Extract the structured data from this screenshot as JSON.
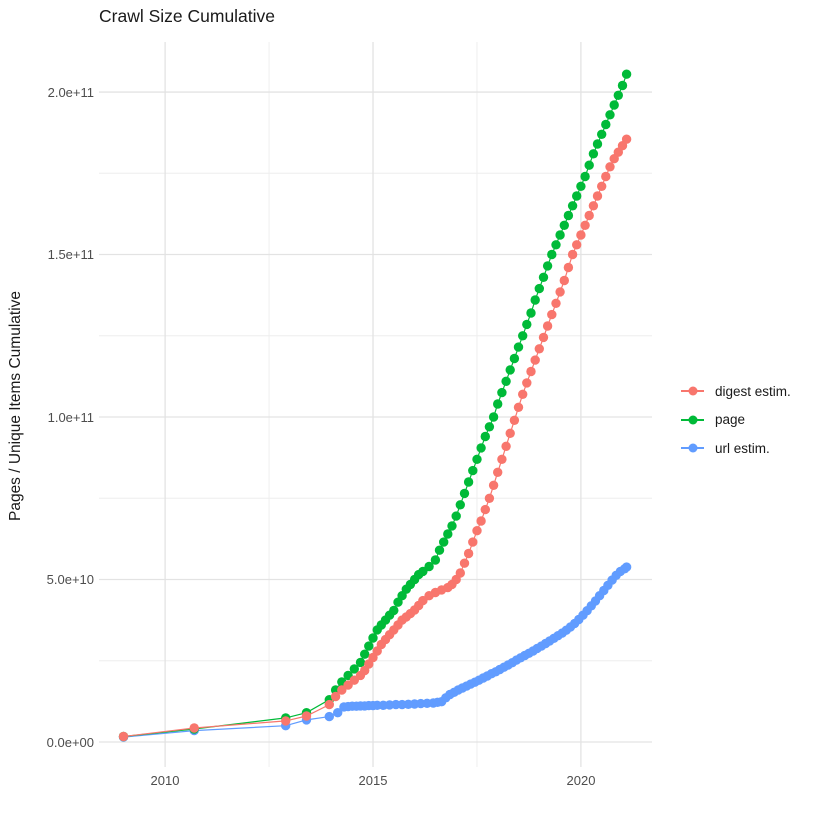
{
  "title": "Crawl Size Cumulative",
  "axes": {
    "y_title": "Pages / Unique Items Cumulative",
    "x_tick_labels": [
      "2010",
      "2015",
      "2020"
    ],
    "y_tick_labels": [
      "0.0e+00",
      "5.0e+10",
      "1.0e+11",
      "1.5e+11",
      "2.0e+11"
    ]
  },
  "legend": {
    "items": [
      {
        "label": "digest estim.",
        "color": "#F8766D"
      },
      {
        "label": "page",
        "color": "#00BA38"
      },
      {
        "label": "url estim.",
        "color": "#619CFF"
      }
    ]
  },
  "chart_data": {
    "type": "line",
    "title": "Crawl Size Cumulative",
    "xlabel": "",
    "ylabel": "Pages / Unique Items Cumulative",
    "legend_position": "right",
    "grid": {
      "major_color": "#E3E3E3",
      "minor_color": "#EEEEEE"
    },
    "value_unit_note": "point values are in billions (1e9) of pages / unique items",
    "xlim": [
      2008.41,
      2021.71
    ],
    "ylim_billions": [
      -7.7,
      215.4
    ],
    "x_major_ticks": [
      2010,
      2015,
      2020
    ],
    "x_minor_ticks": [
      2012.5,
      2017.5
    ],
    "y_major_ticks_billions": [
      0,
      50,
      100,
      150,
      200
    ],
    "y_minor_ticks_billions": [
      25,
      75,
      125,
      175
    ],
    "series": [
      {
        "name": "digest estim.",
        "color": "#F8766D",
        "points_year_billions": [
          [
            2009.0,
            1.7
          ],
          [
            2010.7,
            4.3
          ],
          [
            2012.9,
            6.5
          ],
          [
            2013.4,
            8.0
          ],
          [
            2013.95,
            11.5
          ],
          [
            2014.1,
            14
          ],
          [
            2014.25,
            16
          ],
          [
            2014.4,
            17.5
          ],
          [
            2014.55,
            19
          ],
          [
            2014.7,
            20.5
          ],
          [
            2014.8,
            22
          ],
          [
            2014.9,
            24
          ],
          [
            2015.0,
            26
          ],
          [
            2015.1,
            28
          ],
          [
            2015.2,
            30
          ],
          [
            2015.3,
            31.5
          ],
          [
            2015.4,
            33
          ],
          [
            2015.5,
            34.5
          ],
          [
            2015.6,
            36
          ],
          [
            2015.7,
            37.5
          ],
          [
            2015.8,
            38.5
          ],
          [
            2015.9,
            39.5
          ],
          [
            2016.0,
            40.6
          ],
          [
            2016.1,
            42
          ],
          [
            2016.2,
            43.5
          ],
          [
            2016.35,
            45
          ],
          [
            2016.5,
            46
          ],
          [
            2016.65,
            46.8
          ],
          [
            2016.8,
            47.5
          ],
          [
            2016.9,
            48.5
          ],
          [
            2017.0,
            50
          ],
          [
            2017.1,
            52
          ],
          [
            2017.2,
            55
          ],
          [
            2017.3,
            58
          ],
          [
            2017.4,
            61.5
          ],
          [
            2017.5,
            65
          ],
          [
            2017.6,
            68
          ],
          [
            2017.7,
            71.5
          ],
          [
            2017.8,
            75
          ],
          [
            2017.9,
            79
          ],
          [
            2018.0,
            83
          ],
          [
            2018.1,
            87
          ],
          [
            2018.2,
            91
          ],
          [
            2018.3,
            95
          ],
          [
            2018.4,
            99
          ],
          [
            2018.5,
            103
          ],
          [
            2018.6,
            107
          ],
          [
            2018.7,
            110.5
          ],
          [
            2018.8,
            114
          ],
          [
            2018.9,
            117.5
          ],
          [
            2019.0,
            121
          ],
          [
            2019.1,
            124.5
          ],
          [
            2019.2,
            128
          ],
          [
            2019.3,
            131.5
          ],
          [
            2019.4,
            135
          ],
          [
            2019.5,
            138.5
          ],
          [
            2019.6,
            142
          ],
          [
            2019.7,
            146
          ],
          [
            2019.8,
            150
          ],
          [
            2019.9,
            153
          ],
          [
            2020.0,
            156
          ],
          [
            2020.1,
            159
          ],
          [
            2020.2,
            162
          ],
          [
            2020.3,
            165
          ],
          [
            2020.4,
            168
          ],
          [
            2020.5,
            171
          ],
          [
            2020.6,
            174
          ],
          [
            2020.7,
            177
          ],
          [
            2020.8,
            179.5
          ],
          [
            2020.9,
            181.5
          ],
          [
            2021.0,
            183.5
          ],
          [
            2021.1,
            185.5
          ]
        ]
      },
      {
        "name": "page",
        "color": "#00BA38",
        "points_year_billions": [
          [
            2009.0,
            1.7
          ],
          [
            2010.7,
            4.0
          ],
          [
            2012.9,
            7.4
          ],
          [
            2013.4,
            9.0
          ],
          [
            2013.95,
            13
          ],
          [
            2014.1,
            16
          ],
          [
            2014.25,
            18.5
          ],
          [
            2014.4,
            20.5
          ],
          [
            2014.55,
            22.5
          ],
          [
            2014.7,
            24.5
          ],
          [
            2014.8,
            27
          ],
          [
            2014.9,
            29.5
          ],
          [
            2015.0,
            32
          ],
          [
            2015.1,
            34.5
          ],
          [
            2015.2,
            36
          ],
          [
            2015.3,
            37.5
          ],
          [
            2015.4,
            39
          ],
          [
            2015.5,
            40.5
          ],
          [
            2015.6,
            43
          ],
          [
            2015.7,
            45
          ],
          [
            2015.8,
            47
          ],
          [
            2015.9,
            48.5
          ],
          [
            2016.0,
            50
          ],
          [
            2016.1,
            51.5
          ],
          [
            2016.2,
            52.5
          ],
          [
            2016.35,
            54
          ],
          [
            2016.5,
            56
          ],
          [
            2016.6,
            59
          ],
          [
            2016.7,
            61.5
          ],
          [
            2016.8,
            64
          ],
          [
            2016.9,
            66.5
          ],
          [
            2017.0,
            69.5
          ],
          [
            2017.1,
            73
          ],
          [
            2017.2,
            76.5
          ],
          [
            2017.3,
            80
          ],
          [
            2017.4,
            83.5
          ],
          [
            2017.5,
            87
          ],
          [
            2017.6,
            90.5
          ],
          [
            2017.7,
            94
          ],
          [
            2017.8,
            97
          ],
          [
            2017.9,
            100
          ],
          [
            2018.0,
            104
          ],
          [
            2018.1,
            107.5
          ],
          [
            2018.2,
            111
          ],
          [
            2018.3,
            114.5
          ],
          [
            2018.4,
            118
          ],
          [
            2018.5,
            121.5
          ],
          [
            2018.6,
            125
          ],
          [
            2018.7,
            128.5
          ],
          [
            2018.8,
            132
          ],
          [
            2018.9,
            136
          ],
          [
            2019.0,
            139.5
          ],
          [
            2019.1,
            143
          ],
          [
            2019.2,
            146.5
          ],
          [
            2019.3,
            150
          ],
          [
            2019.4,
            153
          ],
          [
            2019.5,
            156
          ],
          [
            2019.6,
            159
          ],
          [
            2019.7,
            162
          ],
          [
            2019.8,
            165
          ],
          [
            2019.9,
            168
          ],
          [
            2020.0,
            171
          ],
          [
            2020.1,
            174
          ],
          [
            2020.2,
            177.5
          ],
          [
            2020.3,
            181
          ],
          [
            2020.4,
            184
          ],
          [
            2020.5,
            187
          ],
          [
            2020.6,
            190
          ],
          [
            2020.7,
            193
          ],
          [
            2020.8,
            196
          ],
          [
            2020.9,
            199
          ],
          [
            2021.0,
            202
          ],
          [
            2021.1,
            205.5
          ]
        ]
      },
      {
        "name": "url estim.",
        "color": "#619CFF",
        "points_year_billions": [
          [
            2009.0,
            1.5
          ],
          [
            2010.7,
            3.5
          ],
          [
            2012.9,
            5.0
          ],
          [
            2013.4,
            6.8
          ],
          [
            2013.95,
            7.8
          ],
          [
            2014.15,
            9.0
          ],
          [
            2014.3,
            10.8
          ],
          [
            2014.4,
            10.9
          ],
          [
            2014.5,
            11.0
          ],
          [
            2014.6,
            11.0
          ],
          [
            2014.7,
            11.1
          ],
          [
            2014.8,
            11.1
          ],
          [
            2014.9,
            11.2
          ],
          [
            2015.0,
            11.2
          ],
          [
            2015.1,
            11.3
          ],
          [
            2015.25,
            11.3
          ],
          [
            2015.4,
            11.4
          ],
          [
            2015.55,
            11.5
          ],
          [
            2015.7,
            11.5
          ],
          [
            2015.85,
            11.6
          ],
          [
            2016.0,
            11.7
          ],
          [
            2016.15,
            11.8
          ],
          [
            2016.3,
            11.9
          ],
          [
            2016.45,
            12.0
          ],
          [
            2016.55,
            12.2
          ],
          [
            2016.65,
            12.4
          ],
          [
            2016.75,
            13.6
          ],
          [
            2016.85,
            14.6
          ],
          [
            2016.95,
            15.3
          ],
          [
            2017.05,
            16.0
          ],
          [
            2017.15,
            16.6
          ],
          [
            2017.25,
            17.2
          ],
          [
            2017.35,
            17.8
          ],
          [
            2017.45,
            18.4
          ],
          [
            2017.55,
            19.0
          ],
          [
            2017.65,
            19.7
          ],
          [
            2017.75,
            20.3
          ],
          [
            2017.85,
            21.0
          ],
          [
            2017.95,
            21.6
          ],
          [
            2018.05,
            22.3
          ],
          [
            2018.15,
            23.0
          ],
          [
            2018.25,
            23.7
          ],
          [
            2018.35,
            24.4
          ],
          [
            2018.45,
            25.2
          ],
          [
            2018.55,
            25.9
          ],
          [
            2018.65,
            26.6
          ],
          [
            2018.75,
            27.3
          ],
          [
            2018.85,
            28.0
          ],
          [
            2018.95,
            28.8
          ],
          [
            2019.05,
            29.5
          ],
          [
            2019.15,
            30.3
          ],
          [
            2019.25,
            31.1
          ],
          [
            2019.35,
            31.9
          ],
          [
            2019.45,
            32.7
          ],
          [
            2019.55,
            33.5
          ],
          [
            2019.65,
            34.4
          ],
          [
            2019.75,
            35.4
          ],
          [
            2019.85,
            36.5
          ],
          [
            2019.95,
            37.7
          ],
          [
            2020.05,
            39.0
          ],
          [
            2020.15,
            40.4
          ],
          [
            2020.25,
            41.9
          ],
          [
            2020.35,
            43.4
          ],
          [
            2020.45,
            45.0
          ],
          [
            2020.55,
            46.6
          ],
          [
            2020.65,
            48.2
          ],
          [
            2020.75,
            49.8
          ],
          [
            2020.85,
            51.3
          ],
          [
            2020.95,
            52.5
          ],
          [
            2021.05,
            53.3
          ],
          [
            2021.1,
            53.8
          ]
        ]
      }
    ]
  }
}
